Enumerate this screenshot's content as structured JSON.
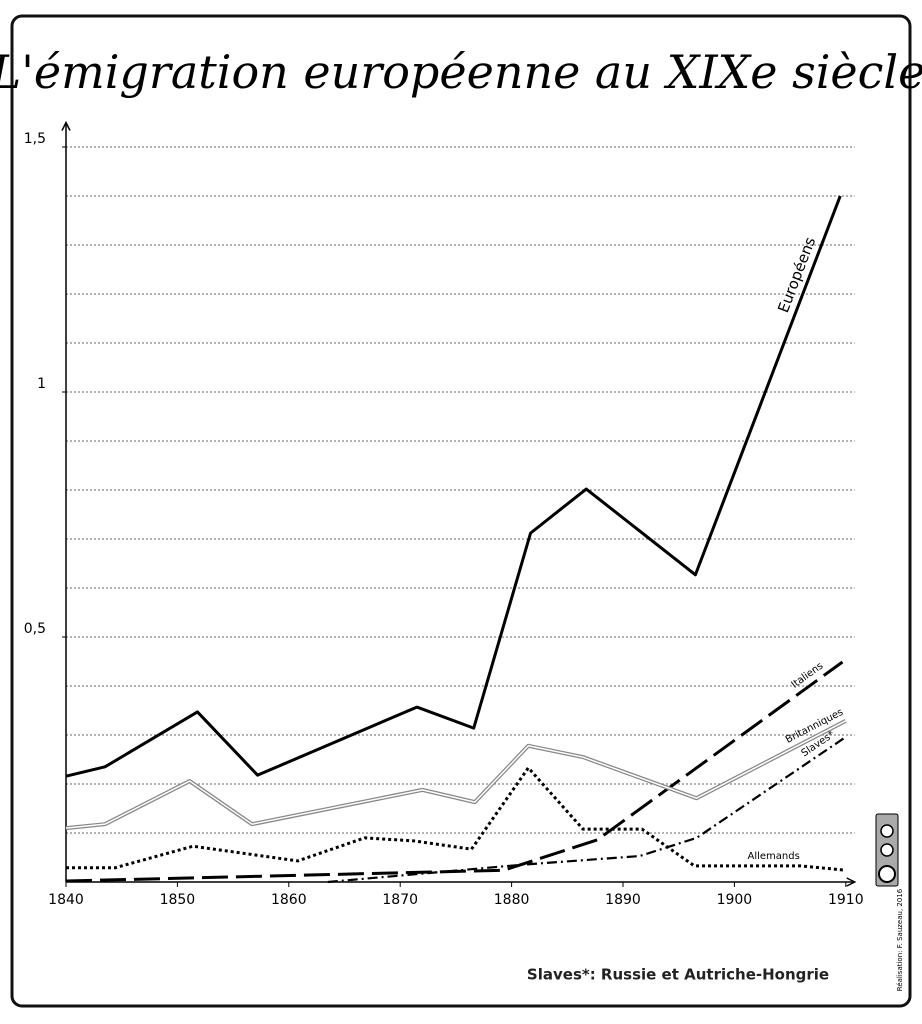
{
  "chart_data": {
    "type": "line",
    "title": "L'émigration européenne au XIXe siècle",
    "note": "Slaves*: Russie et Autriche-Hongrie",
    "credit": "Réalisation: F. Sauzeau, 2016",
    "xlim": [
      1840,
      1910.8
    ],
    "ylim": [
      0,
      1.55
    ],
    "xticks": [
      1840,
      1850,
      1860,
      1870,
      1880,
      1890,
      1900,
      1910
    ],
    "yticks": [
      {
        "value": 0.5,
        "label": "0,5"
      },
      1,
      {
        "value": 1.5,
        "label": "1,5"
      }
    ],
    "ygrid": [
      0.1,
      0.2,
      0.3,
      0.4,
      0.5,
      0.6,
      0.7,
      0.8,
      0.9,
      1.0,
      1.1,
      1.2,
      1.3,
      1.4,
      1.5
    ],
    "grid": true,
    "series": [
      {
        "name": "Européens",
        "color": "#000000",
        "dash": "solid",
        "x": [
          1840,
          1843.5,
          1851.8,
          1857.2,
          1871.5,
          1876.6,
          1881.7,
          1886.7,
          1896.5,
          1909.5
        ],
        "values": [
          0.216,
          0.235,
          0.347,
          0.218,
          0.357,
          0.314,
          0.712,
          0.802,
          0.627,
          1.4
        ]
      },
      {
        "name": "Italiens",
        "color": "#000000",
        "dash": "long-dash",
        "x": [
          1840,
          1879.3,
          1887.7,
          1909.7
        ],
        "values": [
          0.002,
          0.024,
          0.086,
          0.449
        ]
      },
      {
        "name": "Britanniques",
        "color": "#888888",
        "dash": "double",
        "x": [
          1840,
          1843.5,
          1851.1,
          1856.7,
          1872,
          1876.7,
          1881.5,
          1886.4,
          1896.6,
          1910
        ],
        "values": [
          0.11,
          0.118,
          0.206,
          0.118,
          0.188,
          0.163,
          0.278,
          0.255,
          0.171,
          0.329
        ]
      },
      {
        "name": "Slaves*",
        "color": "#000000",
        "dash": "dash-dot",
        "x": [
          1863.5,
          1880.8,
          1891.5,
          1896.6,
          1910
        ],
        "values": [
          0,
          0.035,
          0.053,
          0.09,
          0.296
        ]
      },
      {
        "name": "Allemands",
        "color": "#000000",
        "dash": "dotted",
        "x": [
          1840,
          1844.4,
          1851.4,
          1860.8,
          1866.8,
          1871.2,
          1876.4,
          1881.5,
          1886.4,
          1891.7,
          1896.4,
          1905.9,
          1910
        ],
        "values": [
          0.029,
          0.029,
          0.073,
          0.043,
          0.09,
          0.084,
          0.067,
          0.233,
          0.108,
          0.108,
          0.033,
          0.033,
          0.024
        ]
      }
    ]
  }
}
